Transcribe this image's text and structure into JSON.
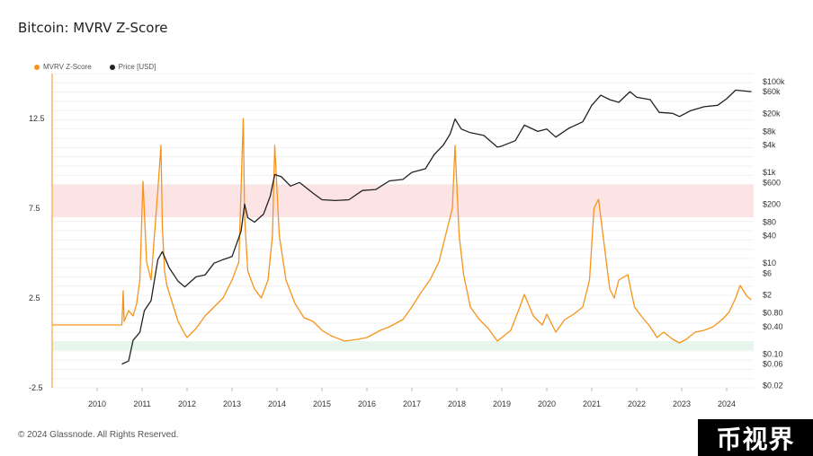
{
  "title": "Bitcoin: MVRV Z-Score",
  "footer": "© 2024 Glassnode. All Rights Reserved.",
  "watermark": "币视界",
  "colors": {
    "mvrv": "#f7931a",
    "price": "#222222",
    "red_band": "#fde4e4",
    "green_band": "#e6f6ec"
  },
  "chart_data": {
    "type": "line",
    "title": "Bitcoin: MVRV Z-Score",
    "x_ticks": [
      "2010",
      "2011",
      "2012",
      "2013",
      "2014",
      "2015",
      "2016",
      "2017",
      "2018",
      "2019",
      "2020",
      "2021",
      "2022",
      "2023",
      "2024"
    ],
    "xlim": [
      2009.0,
      2024.6
    ],
    "y_left": {
      "ticks": [
        "12.5",
        "7.5",
        "2.5",
        "-2.5"
      ],
      "lim": [
        -2.5,
        15.0
      ]
    },
    "y_right": {
      "scale": "log",
      "ticks": [
        "$100k",
        "$60k",
        "$20k",
        "$8k",
        "$4k",
        "$1k",
        "$600",
        "$200",
        "$80",
        "$40",
        "$10",
        "$6",
        "$2",
        "$0.80",
        "$0.40",
        "$0.10",
        "$0.06",
        "$0.02"
      ],
      "tick_values": [
        100000,
        60000,
        20000,
        8000,
        4000,
        1000,
        600,
        200,
        80,
        40,
        10,
        6,
        2,
        0.8,
        0.4,
        0.1,
        0.06,
        0.02
      ],
      "lim": [
        0.018,
        150000
      ]
    },
    "bands": [
      {
        "name": "overvalued",
        "y_from": 7.0,
        "y_to": 8.8,
        "color": "#fde4e4"
      },
      {
        "name": "undervalued",
        "y_from": -0.4,
        "y_to": 0.1,
        "color": "#e6f6ec"
      }
    ],
    "legend": "top-left",
    "series": [
      {
        "name": "MVRV Z-Score",
        "axis": "left",
        "color": "#f7931a",
        "x": [
          2009.0,
          2010.55,
          2010.58,
          2010.6,
          2010.7,
          2010.8,
          2010.88,
          2010.95,
          2011.02,
          2011.1,
          2011.2,
          2011.35,
          2011.42,
          2011.45,
          2011.5,
          2011.55,
          2011.65,
          2011.8,
          2011.95,
          2012.0,
          2012.2,
          2012.4,
          2012.6,
          2012.8,
          2013.0,
          2013.15,
          2013.25,
          2013.28,
          2013.35,
          2013.5,
          2013.65,
          2013.8,
          2013.9,
          2013.95,
          2014.05,
          2014.2,
          2014.4,
          2014.6,
          2014.8,
          2015.0,
          2015.2,
          2015.5,
          2015.8,
          2016.0,
          2016.3,
          2016.5,
          2016.8,
          2017.0,
          2017.2,
          2017.4,
          2017.6,
          2017.8,
          2017.9,
          2017.96,
          2018.05,
          2018.15,
          2018.3,
          2018.5,
          2018.7,
          2018.9,
          2019.0,
          2019.2,
          2019.4,
          2019.5,
          2019.7,
          2019.9,
          2020.0,
          2020.2,
          2020.4,
          2020.6,
          2020.8,
          2020.95,
          2021.05,
          2021.15,
          2021.3,
          2021.4,
          2021.5,
          2021.6,
          2021.8,
          2021.95,
          2022.1,
          2022.3,
          2022.45,
          2022.6,
          2022.8,
          2022.95,
          2023.1,
          2023.3,
          2023.5,
          2023.7,
          2023.9,
          2024.05,
          2024.2,
          2024.3,
          2024.45,
          2024.55
        ],
        "y": [
          1.0,
          1.0,
          2.9,
          1.2,
          1.8,
          1.5,
          2.2,
          3.5,
          9.0,
          4.5,
          3.5,
          8.5,
          11.0,
          6.5,
          4.0,
          3.2,
          2.4,
          1.2,
          0.5,
          0.3,
          0.8,
          1.5,
          2.0,
          2.5,
          3.5,
          4.5,
          12.5,
          7.0,
          4.0,
          3.0,
          2.5,
          3.5,
          6.0,
          11.0,
          6.0,
          3.5,
          2.2,
          1.4,
          1.2,
          0.7,
          0.4,
          0.1,
          0.2,
          0.3,
          0.7,
          0.9,
          1.3,
          2.0,
          2.8,
          3.5,
          4.5,
          6.5,
          7.5,
          11.0,
          6.0,
          3.8,
          2.0,
          1.3,
          0.8,
          0.1,
          0.3,
          0.7,
          2.0,
          2.7,
          1.5,
          1.0,
          1.6,
          0.6,
          1.3,
          1.6,
          2.0,
          3.5,
          7.5,
          8.0,
          5.0,
          3.0,
          2.5,
          3.5,
          3.8,
          2.0,
          1.5,
          0.9,
          0.3,
          0.6,
          0.2,
          0.0,
          0.2,
          0.6,
          0.7,
          0.9,
          1.3,
          1.7,
          2.5,
          3.2,
          2.6,
          2.4
        ]
      },
      {
        "name": "Price [USD]",
        "axis": "right",
        "color": "#222222",
        "x": [
          2010.55,
          2010.7,
          2010.8,
          2010.95,
          2011.05,
          2011.2,
          2011.35,
          2011.45,
          2011.6,
          2011.8,
          2011.95,
          2012.2,
          2012.4,
          2012.6,
          2012.8,
          2013.0,
          2013.2,
          2013.28,
          2013.35,
          2013.5,
          2013.7,
          2013.85,
          2013.95,
          2014.1,
          2014.3,
          2014.5,
          2014.8,
          2015.0,
          2015.3,
          2015.6,
          2015.9,
          2016.2,
          2016.5,
          2016.8,
          2017.0,
          2017.3,
          2017.5,
          2017.7,
          2017.85,
          2017.96,
          2018.1,
          2018.3,
          2018.6,
          2018.9,
          2019.0,
          2019.3,
          2019.5,
          2019.8,
          2020.0,
          2020.2,
          2020.5,
          2020.8,
          2021.0,
          2021.2,
          2021.4,
          2021.6,
          2021.85,
          2022.0,
          2022.3,
          2022.5,
          2022.8,
          2022.95,
          2023.2,
          2023.5,
          2023.8,
          2024.0,
          2024.2,
          2024.4,
          2024.55
        ],
        "y": [
          0.06,
          0.07,
          0.2,
          0.3,
          0.9,
          1.5,
          12.0,
          18.0,
          8.0,
          4.0,
          3.0,
          5.0,
          5.5,
          10.0,
          12.0,
          14.0,
          50.0,
          200.0,
          100.0,
          80.0,
          120.0,
          300.0,
          900.0,
          800.0,
          500.0,
          600.0,
          350.0,
          250.0,
          240.0,
          250.0,
          400.0,
          420.0,
          650.0,
          700.0,
          1000.0,
          1200.0,
          2500.0,
          4000.0,
          7000.0,
          15000.0,
          9000.0,
          7500.0,
          6500.0,
          3600.0,
          3800.0,
          5000.0,
          11000.0,
          8000.0,
          9000.0,
          6000.0,
          9500.0,
          13000.0,
          30000.0,
          50000.0,
          40000.0,
          35000.0,
          60000.0,
          45000.0,
          40000.0,
          21000.0,
          20000.0,
          17000.0,
          23000.0,
          28000.0,
          30000.0,
          42000.0,
          65000.0,
          62000.0,
          60000.0
        ]
      }
    ]
  }
}
